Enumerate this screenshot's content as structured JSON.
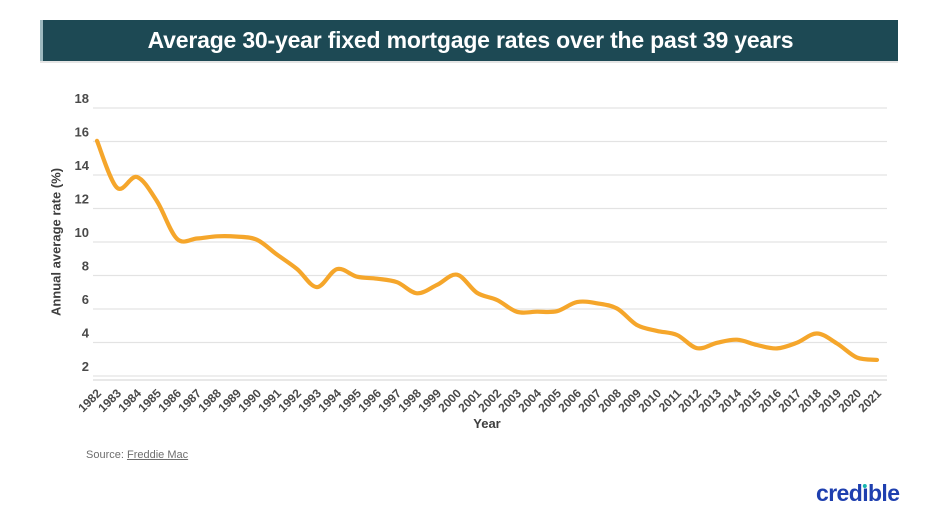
{
  "header": {
    "title": "Average 30-year fixed mortgage rates over the past 39 years"
  },
  "chart_data": {
    "type": "line",
    "title": "Average 30-year fixed mortgage rates over the past 39 years",
    "xlabel": "Year",
    "ylabel": "Annual average rate (%)",
    "categories": [
      "1982",
      "1983",
      "1984",
      "1985",
      "1986",
      "1987",
      "1988",
      "1989",
      "1990",
      "1991",
      "1992",
      "1993",
      "1994",
      "1995",
      "1996",
      "1997",
      "1998",
      "1999",
      "2000",
      "2001",
      "2002",
      "2003",
      "2004",
      "2005",
      "2006",
      "2007",
      "2008",
      "2009",
      "2010",
      "2011",
      "2012",
      "2013",
      "2014",
      "2015",
      "2016",
      "2017",
      "2018",
      "2019",
      "2020",
      "2021"
    ],
    "values": [
      16.04,
      13.24,
      13.88,
      12.43,
      10.19,
      10.21,
      10.34,
      10.32,
      10.13,
      9.25,
      8.39,
      7.31,
      8.38,
      7.93,
      7.81,
      7.6,
      6.94,
      7.44,
      8.05,
      6.97,
      6.54,
      5.83,
      5.84,
      5.87,
      6.41,
      6.34,
      6.03,
      5.04,
      4.69,
      4.45,
      3.66,
      3.98,
      4.17,
      3.85,
      3.65,
      3.99,
      4.54,
      3.94,
      3.1,
      2.96
    ],
    "ylim": [
      2,
      18
    ],
    "y_ticks": [
      2,
      4,
      6,
      8,
      10,
      12,
      14,
      16,
      18
    ],
    "grid": true,
    "legend": false
  },
  "footer": {
    "source_label": "Source:",
    "source_link": "Freddie Mac"
  },
  "logo": {
    "text": "credible",
    "part1": "cred",
    "i_stem": "ı",
    "part2": "ble"
  },
  "colors": {
    "header_bg": "#1D4954",
    "header_text": "#FFFFFF",
    "line": "#F5A62B",
    "gridline": "#E3E3E3",
    "axis_line": "#D9D9D9",
    "tick_text": "#4A4A4A",
    "source_text": "#6E6E6E",
    "logo_blue": "#1E3FAF",
    "logo_dot_teal": "#17B5AE",
    "background": "#FFFFFF"
  }
}
